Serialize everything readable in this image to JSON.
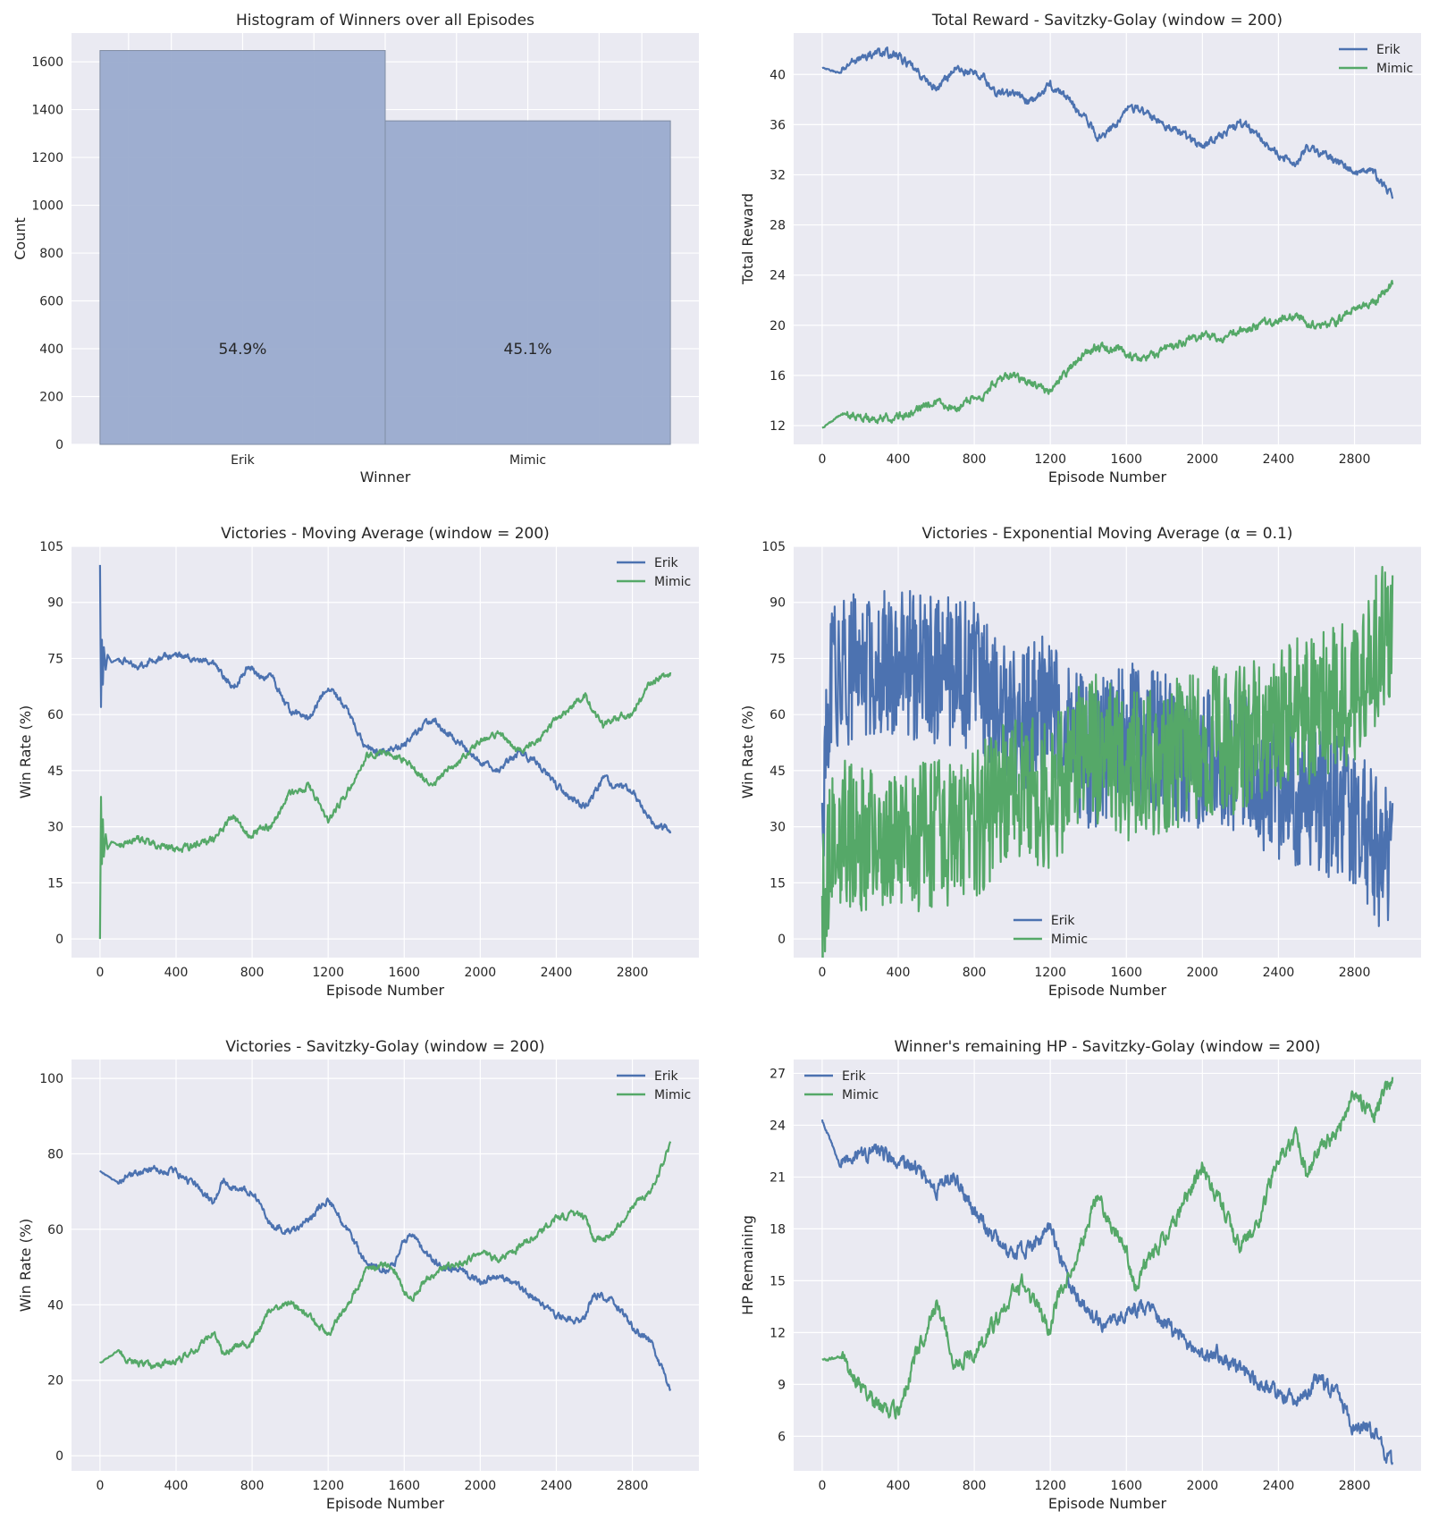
{
  "colors": {
    "erik": "#4c72b0",
    "mimic": "#55a868",
    "axes_bg": "#eaeaf2",
    "grid": "#ffffff",
    "bar_fill": "#9aabcd",
    "bar_edge": "#7f8ca3"
  },
  "chart_data": [
    {
      "type": "bar",
      "title": "Histogram of Winners over all Episodes",
      "xlabel": "Winner",
      "ylabel": "Count",
      "categories": [
        "Erik",
        "Mimic"
      ],
      "values": [
        1647,
        1353
      ],
      "annotations": [
        "54.9%",
        "45.1%"
      ],
      "ylim": [
        0,
        1720
      ],
      "yticks": [
        0,
        200,
        400,
        600,
        800,
        1000,
        1200,
        1400,
        1600
      ],
      "grid": true
    },
    {
      "type": "line",
      "title": "Total Reward - Savitzky-Golay (window = 200)",
      "xlabel": "Episode Number",
      "ylabel": "Total Reward",
      "xlim": [
        -150,
        3150
      ],
      "ylim": [
        10.5,
        43.3
      ],
      "xticks": [
        0,
        400,
        800,
        1200,
        1600,
        2000,
        2400,
        2800
      ],
      "yticks": [
        12,
        16,
        20,
        24,
        28,
        32,
        36,
        40
      ],
      "legend": "top-right",
      "noise": 0.25,
      "grid": true,
      "series": [
        {
          "name": "Erik",
          "x": [
            0,
            100,
            150,
            300,
            400,
            600,
            700,
            850,
            900,
            1000,
            1100,
            1200,
            1300,
            1400,
            1450,
            1550,
            1600,
            1700,
            1900,
            2000,
            2050,
            2200,
            2300,
            2400,
            2500,
            2550,
            2650,
            2700,
            2800,
            2900,
            3000
          ],
          "y": [
            40.5,
            40.1,
            41.0,
            41.8,
            41.5,
            38.8,
            40.5,
            39.8,
            38.6,
            38.5,
            37.8,
            39.2,
            38.0,
            36.2,
            35.0,
            36.0,
            37.6,
            36.9,
            35.2,
            34.3,
            34.8,
            36.1,
            35.2,
            33.4,
            33.0,
            34.2,
            33.5,
            33.2,
            32.2,
            32.2,
            30.3
          ]
        },
        {
          "name": "Mimic",
          "x": [
            0,
            100,
            150,
            250,
            300,
            400,
            500,
            600,
            650,
            700,
            800,
            850,
            900,
            1000,
            1100,
            1200,
            1300,
            1400,
            1450,
            1500,
            1550,
            1600,
            1700,
            1800,
            1900,
            2000,
            2100,
            2200,
            2300,
            2400,
            2500,
            2550,
            2600,
            2700,
            2800,
            2900,
            3000
          ],
          "y": [
            11.8,
            12.9,
            12.8,
            12.5,
            12.6,
            12.7,
            13.2,
            13.8,
            13.4,
            13.3,
            14.2,
            14.3,
            15.3,
            16.0,
            15.3,
            14.7,
            16.5,
            18.0,
            18.3,
            18.0,
            18.3,
            17.6,
            17.3,
            18.0,
            18.7,
            19.2,
            19.0,
            19.5,
            20.0,
            20.5,
            20.7,
            20.2,
            19.8,
            20.3,
            21.4,
            21.8,
            23.3
          ]
        }
      ]
    },
    {
      "type": "line",
      "title": "Victories - Moving Average (window = 200)",
      "xlabel": "Episode Number",
      "ylabel": "Win Rate (%)",
      "xlim": [
        -150,
        3150
      ],
      "ylim": [
        -5,
        105
      ],
      "xticks": [
        0,
        400,
        800,
        1200,
        1600,
        2000,
        2400,
        2800
      ],
      "yticks": [
        0,
        15,
        30,
        45,
        60,
        75,
        90,
        105
      ],
      "legend": "top-right",
      "noise": 0.7,
      "grid": true,
      "series": [
        {
          "name": "Erik",
          "x": [
            0,
            5,
            10,
            15,
            20,
            30,
            40,
            60,
            100,
            200,
            300,
            400,
            500,
            600,
            700,
            780,
            850,
            900,
            1000,
            1100,
            1200,
            1300,
            1400,
            1500,
            1600,
            1700,
            1750,
            1800,
            1900,
            2000,
            2100,
            2200,
            2300,
            2400,
            2500,
            2550,
            2650,
            2700,
            2800,
            2900,
            3000
          ],
          "y": [
            100,
            62,
            80,
            68,
            78,
            72,
            76,
            74,
            75,
            73,
            75,
            76,
            75,
            73,
            67,
            73,
            70,
            70,
            61,
            59,
            68,
            61,
            51,
            50,
            52,
            57,
            59,
            56,
            52,
            47,
            45,
            50,
            47,
            41,
            37,
            35,
            43,
            41,
            40,
            31,
            29
          ]
        },
        {
          "name": "Mimic",
          "x": [
            0,
            5,
            10,
            15,
            20,
            30,
            40,
            60,
            100,
            200,
            300,
            400,
            500,
            600,
            700,
            780,
            850,
            900,
            1000,
            1100,
            1200,
            1300,
            1400,
            1500,
            1600,
            1700,
            1750,
            1800,
            1900,
            2000,
            2100,
            2200,
            2300,
            2400,
            2500,
            2550,
            2650,
            2700,
            2800,
            2900,
            3000
          ],
          "y": [
            0,
            38,
            20,
            32,
            22,
            28,
            24,
            26,
            25,
            27,
            25,
            24,
            25,
            27,
            33,
            27,
            30,
            30,
            39,
            41,
            32,
            39,
            49,
            50,
            48,
            43,
            41,
            44,
            48,
            53,
            55,
            50,
            53,
            59,
            63,
            65,
            57,
            59,
            60,
            69,
            71
          ]
        }
      ]
    },
    {
      "type": "line",
      "title": "Victories - Exponential Moving Average (α = 0.1)",
      "xlabel": "Episode Number",
      "ylabel": "Win Rate (%)",
      "xlim": [
        -150,
        3150
      ],
      "ylim": [
        -5,
        105
      ],
      "xticks": [
        0,
        400,
        800,
        1200,
        1600,
        2000,
        2400,
        2800
      ],
      "yticks": [
        0,
        15,
        30,
        45,
        60,
        75,
        90,
        105
      ],
      "legend": "lower-center",
      "noise": 20,
      "grid": true,
      "series": [
        {
          "name": "Erik",
          "x": [
            0,
            50,
            200,
            400,
            600,
            800,
            1000,
            1200,
            1400,
            1600,
            1800,
            2000,
            2200,
            2400,
            2600,
            2800,
            3000
          ],
          "y": [
            30,
            70,
            73,
            74,
            72,
            70,
            58,
            62,
            48,
            54,
            52,
            47,
            47,
            41,
            38,
            33,
            18
          ]
        },
        {
          "name": "Mimic",
          "x": [
            0,
            50,
            200,
            400,
            600,
            800,
            1000,
            1200,
            1400,
            1600,
            1800,
            2000,
            2200,
            2400,
            2600,
            2800,
            3000
          ],
          "y": [
            5,
            30,
            27,
            26,
            28,
            30,
            42,
            38,
            52,
            46,
            48,
            53,
            53,
            59,
            62,
            67,
            85
          ]
        }
      ]
    },
    {
      "type": "line",
      "title": "Victories - Savitzky-Golay (window = 200)",
      "xlabel": "Episode Number",
      "ylabel": "Win Rate (%)",
      "xlim": [
        -150,
        3150
      ],
      "ylim": [
        -4,
        105
      ],
      "xticks": [
        0,
        400,
        800,
        1200,
        1600,
        2000,
        2400,
        2800
      ],
      "yticks": [
        0,
        20,
        40,
        60,
        80,
        100
      ],
      "legend": "top-right",
      "noise": 0.7,
      "grid": true,
      "series": [
        {
          "name": "Erik",
          "x": [
            0,
            100,
            150,
            300,
            400,
            500,
            600,
            650,
            700,
            800,
            900,
            1000,
            1100,
            1200,
            1300,
            1400,
            1500,
            1550,
            1600,
            1650,
            1700,
            1800,
            1900,
            2000,
            2100,
            2200,
            2300,
            2400,
            2500,
            2550,
            2600,
            2650,
            2700,
            2800,
            2900,
            3000
          ],
          "y": [
            75.5,
            72,
            75,
            76,
            75,
            72,
            67,
            73,
            71,
            70,
            61,
            59,
            63,
            68,
            60,
            51,
            49,
            51,
            57,
            58,
            54,
            50,
            49,
            46,
            48,
            45,
            41,
            37,
            36,
            37,
            43,
            42,
            41,
            34,
            30,
            17.5
          ]
        },
        {
          "name": "Mimic",
          "x": [
            0,
            100,
            150,
            300,
            400,
            500,
            600,
            650,
            700,
            800,
            900,
            1000,
            1100,
            1200,
            1300,
            1400,
            1500,
            1550,
            1600,
            1650,
            1700,
            1800,
            1900,
            2000,
            2100,
            2200,
            2300,
            2400,
            2500,
            2550,
            2600,
            2650,
            2700,
            2800,
            2900,
            3000
          ],
          "y": [
            24.5,
            28,
            25,
            24,
            25,
            28,
            33,
            27,
            29,
            30,
            39,
            41,
            37,
            32,
            40,
            49,
            51,
            49,
            43,
            42,
            46,
            50,
            51,
            54,
            52,
            55,
            59,
            63,
            64,
            63,
            57,
            58,
            59,
            66,
            70,
            82.5
          ]
        }
      ]
    },
    {
      "type": "line",
      "title": "Winner's remaining HP - Savitzky-Golay (window = 200)",
      "xlabel": "Episode Number",
      "ylabel": "HP Remaining",
      "xlim": [
        -150,
        3150
      ],
      "ylim": [
        4.0,
        27.8
      ],
      "xticks": [
        0,
        400,
        800,
        1200,
        1600,
        2000,
        2400,
        2800
      ],
      "yticks": [
        6,
        9,
        12,
        15,
        18,
        21,
        24,
        27
      ],
      "legend": "top-left",
      "noise": 0.35,
      "grid": true,
      "series": [
        {
          "name": "Erik",
          "x": [
            0,
            100,
            150,
            300,
            400,
            500,
            600,
            650,
            700,
            800,
            900,
            1000,
            1100,
            1200,
            1300,
            1400,
            1500,
            1550,
            1600,
            1700,
            1800,
            1900,
            2000,
            2100,
            2200,
            2300,
            2400,
            2500,
            2550,
            2600,
            2650,
            2700,
            2800,
            2900,
            3000
          ],
          "y": [
            24.3,
            21.5,
            22.2,
            22.5,
            22.0,
            21.5,
            20.2,
            21.0,
            20.8,
            19.0,
            17.5,
            16.5,
            17.0,
            18.0,
            15.0,
            13.0,
            12.5,
            12.5,
            13.0,
            13.5,
            12.5,
            11.5,
            10.5,
            10.8,
            9.8,
            9.0,
            8.5,
            8.0,
            8.5,
            9.3,
            9.0,
            8.5,
            6.5,
            6.3,
            4.3
          ]
        },
        {
          "name": "Mimic",
          "x": [
            0,
            100,
            150,
            250,
            300,
            400,
            450,
            500,
            600,
            650,
            700,
            750,
            800,
            900,
            1000,
            1050,
            1100,
            1200,
            1250,
            1300,
            1400,
            1450,
            1500,
            1600,
            1650,
            1700,
            1800,
            1900,
            2000,
            2100,
            2150,
            2200,
            2300,
            2350,
            2400,
            2500,
            2550,
            2600,
            2700,
            2800,
            2850,
            2900,
            3000
          ],
          "y": [
            10.4,
            10.6,
            9.5,
            8.5,
            7.5,
            7.5,
            9.0,
            11.0,
            13.5,
            12.0,
            10.0,
            10.5,
            10.8,
            12.5,
            14.2,
            14.8,
            14.0,
            12.0,
            14.5,
            15.0,
            18.5,
            20.0,
            18.8,
            16.5,
            14.5,
            16.0,
            17.5,
            19.5,
            21.5,
            19.5,
            18.0,
            17.0,
            18.5,
            20.5,
            22.0,
            23.5,
            21.0,
            22.5,
            23.5,
            26.0,
            25.0,
            24.5,
            27.0
          ]
        }
      ]
    }
  ]
}
